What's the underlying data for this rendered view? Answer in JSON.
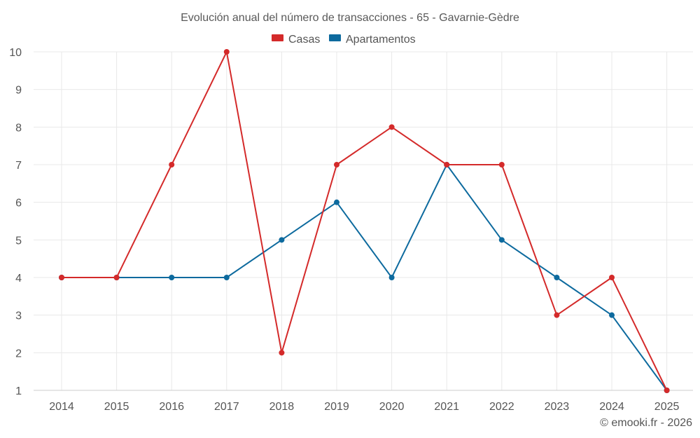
{
  "chart_data": {
    "type": "line",
    "title": "Evolución anual del número de transacciones - 65 - Gavarnie-Gèdre",
    "xlabel": "",
    "ylabel": "",
    "categories": [
      "2014",
      "2015",
      "2016",
      "2017",
      "2018",
      "2019",
      "2020",
      "2021",
      "2022",
      "2023",
      "2024",
      "2025"
    ],
    "ylim": [
      1,
      10
    ],
    "yticks": [
      1,
      2,
      3,
      4,
      5,
      6,
      7,
      8,
      9,
      10
    ],
    "grid": true,
    "legend_position": "top-center",
    "series": [
      {
        "name": "Casas",
        "color": "#d42a2a",
        "values": [
          4,
          4,
          7,
          10,
          2,
          7,
          8,
          7,
          7,
          3,
          4,
          1
        ]
      },
      {
        "name": "Apartamentos",
        "color": "#0d6a9e",
        "values": [
          4,
          4,
          4,
          4,
          5,
          6,
          4,
          7,
          5,
          4,
          3,
          1
        ]
      }
    ]
  },
  "credit": "© emooki.fr - 2026"
}
